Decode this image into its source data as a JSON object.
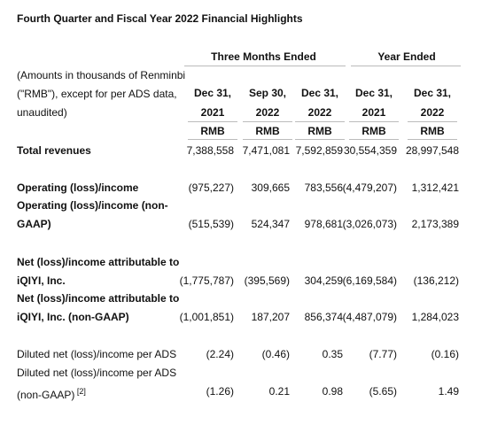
{
  "title": "Fourth Quarter and Fiscal Year 2022 Financial Highlights",
  "header": {
    "groups": [
      "Three Months Ended",
      "Year Ended"
    ],
    "note": [
      "(Amounts in thousands of Renminbi",
      "(\"RMB\"), except for per ADS data,",
      "unaudited)"
    ],
    "columns": [
      {
        "date": "Dec 31,",
        "year": "2021",
        "unit": "RMB"
      },
      {
        "date": "Sep 30,",
        "year": "2022",
        "unit": "RMB"
      },
      {
        "date": "Dec 31,",
        "year": "2022",
        "unit": "RMB"
      },
      {
        "date": "Dec 31,",
        "year": "2021",
        "unit": "RMB"
      },
      {
        "date": "Dec 31,",
        "year": "2022",
        "unit": "RMB"
      }
    ]
  },
  "rows": [
    {
      "label": [
        "Total revenues"
      ],
      "cells": [
        "7,388,558",
        "7,471,081",
        "7,592,859",
        "30,554,359",
        "28,997,548"
      ]
    },
    {
      "label": [
        "Operating (loss)/income"
      ],
      "cells": [
        "(975,227)",
        "309,665",
        "783,556",
        "(4,479,207)",
        "1,312,421"
      ]
    },
    {
      "label": [
        "Operating (loss)/income (non-",
        "GAAP)"
      ],
      "cells": [
        "(515,539)",
        "524,347",
        "978,681",
        "(3,026,073)",
        "2,173,389"
      ]
    },
    {
      "label": [
        "Net (loss)/income attributable to",
        "iQIYI, Inc."
      ],
      "cells": [
        "(1,775,787)",
        "(395,569)",
        "304,259",
        "(6,169,584)",
        "(136,212)"
      ]
    },
    {
      "label": [
        "Net (loss)/income attributable to",
        "iQIYI, Inc. (non-GAAP)"
      ],
      "cells": [
        "(1,001,851)",
        "187,207",
        "856,374",
        "(4,487,079)",
        "1,284,023"
      ]
    },
    {
      "label": [
        "Diluted net (loss)/income per ADS"
      ],
      "cells": [
        "(2.24)",
        "(0.46)",
        "0.35",
        "(7.77)",
        "(0.16)"
      ]
    },
    {
      "label": [
        "Diluted net (loss)/income per ADS",
        "(non-GAAP)"
      ],
      "footnote": "[2]",
      "cells": [
        "(1.26)",
        "0.21",
        "0.98",
        "(5.65)",
        "1.49"
      ]
    }
  ]
}
